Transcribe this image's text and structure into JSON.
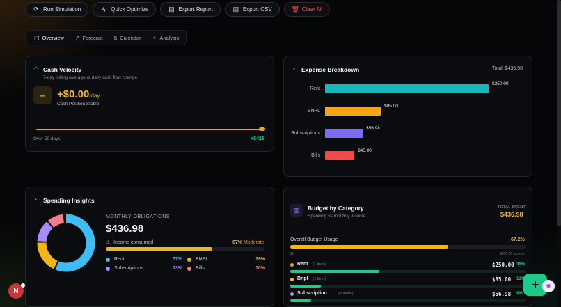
{
  "toolbar": {
    "run": "Run Simulation",
    "optimize": "Quick Optimize",
    "report": "Export Report",
    "csv": "Export CSV",
    "clear": "Clear All"
  },
  "tabs": [
    "Overview",
    "Forecast",
    "Calendar",
    "Analysis"
  ],
  "cash_velocity": {
    "title": "Cash Velocity",
    "subtitle": "7-day rolling average of daily cash flow change",
    "amount": "+$0.00",
    "per": "/day",
    "status": "Cash Position Stable",
    "footer_left": "Over 59 days:",
    "footer_right": "+$426",
    "icon": "dash-icon",
    "accent": "#f3b526"
  },
  "expense": {
    "title": "Expense Breakdown",
    "total": "Total: $436.98",
    "items": [
      {
        "label": "Rent",
        "value": "$250.00",
        "amount": 250,
        "color": "#14b8b8"
      },
      {
        "label": "BNPL",
        "value": "$85.00",
        "amount": 85,
        "color": "#f2a516"
      },
      {
        "label": "Subscriptions",
        "value": "$56.98",
        "amount": 56.98,
        "color": "#7c6cf2"
      },
      {
        "label": "Bills",
        "value": "$45.00",
        "amount": 45,
        "color": "#ef4b4b"
      }
    ]
  },
  "insights": {
    "title": "Spending Insights",
    "section": "MONTHLY OBLIGATIONS",
    "total": "$436.98",
    "consumed_label": "Income consumed",
    "consumed_pct": "67%",
    "consumed_level": "Moderate",
    "consumed_fraction": 0.67,
    "legend": [
      {
        "name": "Rent",
        "pct": "57%",
        "color": "#3fbdf2",
        "fraction": 0.57
      },
      {
        "name": "BNPL",
        "pct": "19%",
        "color": "#f2b51c",
        "fraction": 0.19
      },
      {
        "name": "Subscriptions",
        "pct": "13%",
        "color": "#a78bfa",
        "fraction": 0.13
      },
      {
        "name": "Bills",
        "pct": "10%",
        "color": "#f27c8a",
        "fraction": 0.1
      }
    ]
  },
  "budget": {
    "title": "Budget by Category",
    "subtitle": "Spending vs monthly income",
    "total_label": "TOTAL SPENT",
    "total": "$436.98",
    "overall_label": "Overall Budget Usage",
    "overall_pct": "67.2%",
    "overall_fraction": 0.672,
    "scale_left": "$0",
    "scale_right": "$650.00 income",
    "rows": [
      {
        "name": "Rent",
        "count": "(1 item)",
        "amount": "$250.00",
        "pct": "38%",
        "color": "#f2a516",
        "fraction": 0.38
      },
      {
        "name": "Bnpl",
        "count": "(1 item)",
        "amount": "$85.00",
        "pct": "13%",
        "color": "#f2c516",
        "fraction": 0.13
      },
      {
        "name": "Subscription",
        "count": "(3 items)",
        "amount": "$56.98",
        "pct": "9%",
        "color": "#b48cf2",
        "fraction": 0.09
      }
    ]
  },
  "avatar": "N"
}
